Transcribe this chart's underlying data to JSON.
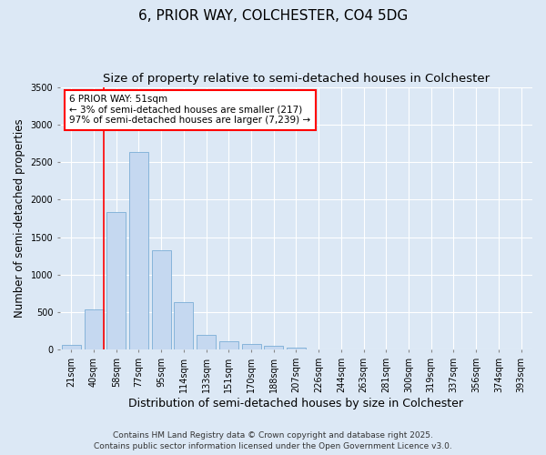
{
  "title": "6, PRIOR WAY, COLCHESTER, CO4 5DG",
  "subtitle": "Size of property relative to semi-detached houses in Colchester",
  "xlabel": "Distribution of semi-detached houses by size in Colchester",
  "ylabel": "Number of semi-detached properties",
  "footer_line1": "Contains HM Land Registry data © Crown copyright and database right 2025.",
  "footer_line2": "Contains public sector information licensed under the Open Government Licence v3.0.",
  "categories": [
    "21sqm",
    "40sqm",
    "58sqm",
    "77sqm",
    "95sqm",
    "114sqm",
    "133sqm",
    "151sqm",
    "170sqm",
    "188sqm",
    "207sqm",
    "226sqm",
    "244sqm",
    "263sqm",
    "281sqm",
    "300sqm",
    "319sqm",
    "337sqm",
    "356sqm",
    "374sqm",
    "393sqm"
  ],
  "values": [
    70,
    540,
    1840,
    2640,
    1330,
    640,
    200,
    110,
    75,
    50,
    30,
    10,
    5,
    2,
    1,
    0,
    0,
    0,
    0,
    0,
    0
  ],
  "bar_color": "#c5d8f0",
  "bar_edge_color": "#7badd6",
  "red_line_index": 1,
  "annotation_text": "6 PRIOR WAY: 51sqm\n← 3% of semi-detached houses are smaller (217)\n97% of semi-detached houses are larger (7,239) →",
  "annotation_box_facecolor": "white",
  "annotation_box_edgecolor": "red",
  "red_line_color": "red",
  "ylim": [
    0,
    3500
  ],
  "yticks": [
    0,
    500,
    1000,
    1500,
    2000,
    2500,
    3000,
    3500
  ],
  "bg_color": "#dce8f5",
  "plot_bg_color": "#dce8f5",
  "grid_color": "white",
  "title_fontsize": 11,
  "subtitle_fontsize": 9.5,
  "tick_fontsize": 7,
  "ylabel_fontsize": 8.5,
  "xlabel_fontsize": 9,
  "footer_fontsize": 6.5,
  "annotation_fontsize": 7.5
}
